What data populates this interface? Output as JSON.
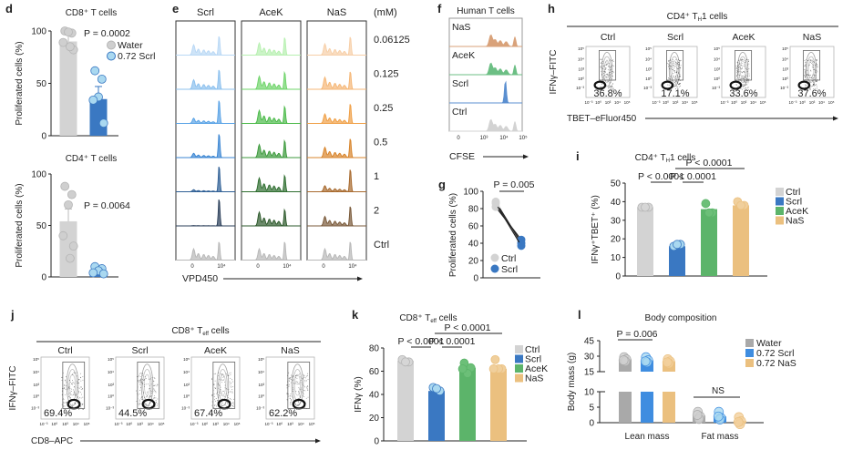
{
  "chart_data": [
    {
      "panel": "d",
      "type": "bar",
      "title": "CD8⁺ T cells",
      "ylabel": "Proliferated cells (%)",
      "ylim": [
        0,
        100
      ],
      "yticks": [
        0,
        50,
        100
      ],
      "groups": [
        {
          "name": "Water",
          "color": "#d3d3d3",
          "point_color": "#cfcfcf",
          "mean": 90,
          "sd": 8,
          "points": [
            100,
            98,
            99,
            89,
            82,
            85
          ]
        },
        {
          "name": "0.72 Scrl",
          "color": "#3a78c2",
          "point_color": "#a9d8f0",
          "mean": 35,
          "sd": 12,
          "points": [
            62,
            54,
            37,
            34,
            12
          ]
        }
      ],
      "pvalue": "P = 0.0002",
      "legend": [
        "Water",
        "0.72 Scrl"
      ]
    },
    {
      "panel": "d",
      "type": "bar",
      "title": "CD4⁺ T cells",
      "ylabel": "Proliferated cells (%)",
      "ylim": [
        0,
        100
      ],
      "yticks": [
        0,
        50,
        100
      ],
      "groups": [
        {
          "name": "Water",
          "color": "#d3d3d3",
          "point_color": "#cfcfcf",
          "mean": 54,
          "sd": 12,
          "points": [
            88,
            80,
            70,
            40,
            30,
            18
          ]
        },
        {
          "name": "0.72 Scrl",
          "color": "#3a78c2",
          "point_color": "#a9d8f0",
          "mean": 6,
          "sd": 2,
          "points": [
            10,
            8,
            6,
            4,
            3
          ]
        }
      ],
      "pvalue": "P = 0.0064"
    },
    {
      "panel": "i",
      "type": "bar",
      "title_main": "CD4⁺ T",
      "title_sub": "H",
      "title_end": "1 cells",
      "ylabel": "IFNγ⁺TBET⁺ (%)",
      "ylim": [
        0,
        50
      ],
      "yticks": [
        0,
        10,
        20,
        30,
        40,
        50
      ],
      "groups": [
        {
          "name": "Ctrl",
          "color": "#d3d3d3",
          "point_color": "#d6d6d6",
          "mean": 37,
          "points": [
            37,
            37,
            37
          ]
        },
        {
          "name": "Scrl",
          "color": "#3a78c2",
          "point_color": "#a9d8f0",
          "mean": 16,
          "points": [
            16,
            17,
            17
          ]
        },
        {
          "name": "AceK",
          "color": "#5cb46a",
          "point_color": "#6cbf78",
          "mean": 36,
          "points": [
            39,
            34,
            34
          ]
        },
        {
          "name": "NaS",
          "color": "#ebc07f",
          "point_color": "#f0cf9c",
          "mean": 38,
          "points": [
            40,
            38,
            38
          ]
        }
      ],
      "comparisons": [
        {
          "from": 0,
          "to": 1,
          "label": "P < 0.0001",
          "level": 0
        },
        {
          "from": 1,
          "to": 2,
          "label": "P < 0.0001",
          "level": 0
        },
        {
          "from": 1,
          "to": 3,
          "label": "P < 0.0001",
          "level": 1
        }
      ],
      "legend": [
        "Ctrl",
        "Scrl",
        "AceK",
        "NaS"
      ]
    },
    {
      "panel": "k",
      "type": "bar",
      "title_main": "CD8⁺ T",
      "title_sub": "eff",
      "title_end": " cells",
      "ylabel": "IFNγ (%)",
      "ylim": [
        0,
        80
      ],
      "yticks": [
        0,
        20,
        40,
        60,
        80
      ],
      "groups": [
        {
          "name": "Ctrl",
          "color": "#d3d3d3",
          "point_color": "#d6d6d6",
          "mean": 69,
          "points": [
            70,
            68,
            68
          ]
        },
        {
          "name": "Scrl",
          "color": "#3a78c2",
          "point_color": "#a9d8f0",
          "mean": 43,
          "points": [
            46,
            43,
            45
          ]
        },
        {
          "name": "AceK",
          "color": "#5cb46a",
          "point_color": "#6cbf78",
          "mean": 63,
          "points": [
            67,
            63,
            58,
            62
          ]
        },
        {
          "name": "NaS",
          "color": "#ebc07f",
          "point_color": "#f0cf9c",
          "mean": 62,
          "points": [
            70,
            62,
            62,
            62
          ]
        }
      ],
      "comparisons": [
        {
          "from": 0,
          "to": 1,
          "label": "P < 0.0001",
          "level": 0
        },
        {
          "from": 1,
          "to": 2,
          "label": "P < 0.0001",
          "level": 0
        },
        {
          "from": 1,
          "to": 3,
          "label": "P < 0.0001",
          "level": 1
        }
      ],
      "legend": [
        "Ctrl",
        "Scrl",
        "AceK",
        "NaS"
      ]
    },
    {
      "panel": "l",
      "type": "bar",
      "title": "Body composition",
      "ylabel": "Body mass (g)",
      "y_upper_ticks": [
        15,
        30,
        45
      ],
      "y_lower_ticks": [
        0,
        5,
        10
      ],
      "categories": [
        "Lean mass",
        "Fat mass"
      ],
      "series": [
        {
          "name": "Water",
          "color": "#a9a9a9",
          "point_color": "#cfcfcf",
          "values": [
            27,
            2.3
          ],
          "points": [
            [
              29,
              27,
              25,
              26
            ],
            [
              3.5,
              2,
              1.2,
              2.5
            ]
          ]
        },
        {
          "name": "0.72 Scrl",
          "color": "#3f8de0",
          "point_color": "#a9d8f0",
          "values": [
            26,
            2
          ],
          "points": [
            [
              29,
              26,
              24,
              25
            ],
            [
              3.5,
              1.5,
              1,
              2
            ]
          ]
        },
        {
          "name": "0.72 NaS",
          "color": "#ebc07f",
          "point_color": "#f3cf9c",
          "values": [
            25,
            0.5
          ],
          "points": [
            [
              27,
              25,
              23,
              24
            ],
            [
              1.8,
              0.5,
              -0.5,
              0.2
            ]
          ]
        }
      ],
      "comparisons": [
        {
          "category": 0,
          "label": "P = 0.006"
        },
        {
          "category": 1,
          "label": "NS"
        }
      ]
    },
    {
      "panel": "g",
      "type": "line",
      "ylabel": "Proliferated cells (%)",
      "ylim": [
        0,
        100
      ],
      "yticks": [
        0,
        20,
        40,
        60,
        80,
        100
      ],
      "categories": [
        "Ctrl",
        "Scrl"
      ],
      "colors": [
        "#d3d3d3",
        "#3a78c2"
      ],
      "pairs": [
        [
          88,
          40
        ],
        [
          82,
          44
        ],
        [
          86,
          37
        ]
      ],
      "pvalue": "P = 0.005",
      "legend": [
        "Ctrl",
        "Scrl"
      ]
    }
  ],
  "panel_labels": {
    "d": "d",
    "e": "e",
    "f": "f",
    "g": "g",
    "h": "h",
    "i": "i",
    "j": "j",
    "k": "k",
    "l": "l"
  },
  "histograms_e": {
    "columns": [
      {
        "name": "Scrl",
        "colors": [
          "#b9d8f5",
          "#8cc0ee",
          "#5aa3e6",
          "#3b86d3",
          "#2f5f95",
          "#2b3f5a",
          "#b8b8b8"
        ],
        "divided": [
          0.6,
          0.55,
          0.3,
          0.25,
          0.12,
          0.02,
          0.65
        ]
      },
      {
        "name": "AceK",
        "colors": [
          "#b7f0b0",
          "#6fd46a",
          "#4cba4a",
          "#3c9a3c",
          "#2f6e30",
          "#2e5a2c",
          "#b8b8b8"
        ],
        "divided": [
          0.7,
          0.75,
          0.75,
          0.75,
          0.8,
          0.8,
          0.65
        ]
      },
      {
        "name": "NaS",
        "colors": [
          "#f7cfa8",
          "#f5b777",
          "#f0a047",
          "#d8852c",
          "#a86a2e",
          "#7a5a3a",
          "#b8b8b8"
        ],
        "divided": [
          0.65,
          0.7,
          0.55,
          0.6,
          0.35,
          0.55,
          0.65
        ]
      }
    ],
    "unit": "(mM)",
    "rows": [
      "0.06125",
      "0.125",
      "0.25",
      "0.5",
      "1",
      "2",
      "Ctrl"
    ],
    "xticks": [
      "0",
      "10⁴"
    ],
    "xlabel": "VPD450"
  },
  "histograms_f": {
    "title": "Human T cells",
    "rows": [
      {
        "name": "NaS",
        "color": "#d9a27a",
        "position": "left"
      },
      {
        "name": "AceK",
        "color": "#6cbf84",
        "position": "left"
      },
      {
        "name": "Scrl",
        "color": "#5b8fd0",
        "position": "right"
      },
      {
        "name": "Ctrl",
        "color": "#d3d3d3",
        "position": "left"
      }
    ],
    "xticks": [
      "0",
      "10³",
      "10⁴",
      "10⁵"
    ],
    "xlabel": "CFSE"
  },
  "flow_h": {
    "title_main": "CD4⁺ T",
    "title_sub": "H",
    "title_end": "1 cells",
    "ylabel": "IFNγ–FITC",
    "xlabel": "TBET–eFluor450",
    "yticks": [
      "10⁵",
      "10⁴",
      "10³",
      "10⁰",
      "10⁻³"
    ],
    "xticks": [
      "10⁻³",
      "10⁰",
      "10³",
      "10⁴",
      "10⁵"
    ],
    "plots": [
      {
        "name": "Ctrl",
        "percent": "36.8%"
      },
      {
        "name": "Scrl",
        "percent": "17.1%"
      },
      {
        "name": "AceK",
        "percent": "33.6%"
      },
      {
        "name": "NaS",
        "percent": "37.6%"
      }
    ]
  },
  "flow_j": {
    "title_main": "CD8⁺ T",
    "title_sub": "eff",
    "title_end": " cells",
    "ylabel": "IFNγ–FITC",
    "xlabel": "CD8–APC",
    "yticks": [
      "10⁵",
      "10⁴",
      "10³",
      "10⁰",
      "10⁻³"
    ],
    "xticks": [
      "10⁻³",
      "10⁰",
      "10³",
      "10⁴",
      "10⁵"
    ],
    "plots": [
      {
        "name": "Ctrl",
        "percent": "69.4%"
      },
      {
        "name": "Scrl",
        "percent": "44.5%"
      },
      {
        "name": "AceK",
        "percent": "67.4%"
      },
      {
        "name": "NaS",
        "percent": "62.2%"
      }
    ]
  }
}
